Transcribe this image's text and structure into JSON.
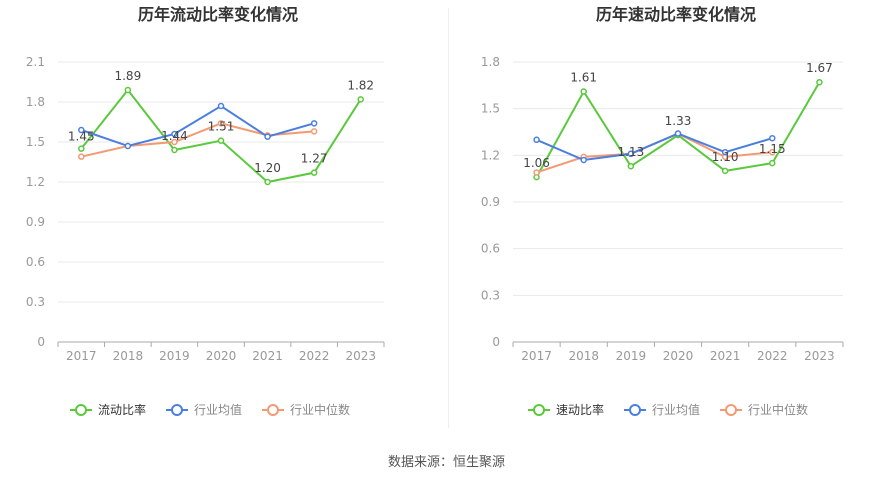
{
  "source": "数据来源：恒生聚源",
  "colors": {
    "series_company": "#5ac93c",
    "series_avg": "#4a7fe0",
    "series_median": "#f29a73",
    "grid": "#e8e8e8",
    "axis": "#999999",
    "title": "#333333"
  },
  "chart_data": [
    {
      "type": "line",
      "title": "历年流动比率变化情况",
      "x": [
        "2017",
        "2018",
        "2019",
        "2020",
        "2021",
        "2022",
        "2023"
      ],
      "ylim": [
        0,
        2.1
      ],
      "yticks": [
        "0",
        "0.3",
        "0.6",
        "0.9",
        "1.2",
        "1.5",
        "1.8",
        "2.1"
      ],
      "grid": true,
      "legend": "bottom-center",
      "series": [
        {
          "name": "流动比率",
          "values": [
            1.45,
            1.89,
            1.44,
            1.51,
            1.2,
            1.27,
            1.82
          ],
          "labels": [
            "1.45",
            "1.89",
            "1.44",
            "1.51",
            "1.20",
            "1.27",
            "1.82"
          ]
        },
        {
          "name": "行业均值",
          "values": [
            1.59,
            1.47,
            1.56,
            1.77,
            1.54,
            1.64,
            null
          ]
        },
        {
          "name": "行业中位数",
          "values": [
            1.39,
            1.47,
            1.5,
            1.64,
            1.55,
            1.58,
            null
          ]
        }
      ]
    },
    {
      "type": "line",
      "title": "历年速动比率变化情况",
      "x": [
        "2017",
        "2018",
        "2019",
        "2020",
        "2021",
        "2022",
        "2023"
      ],
      "ylim": [
        0,
        1.8
      ],
      "yticks": [
        "0",
        "0.3",
        "0.6",
        "0.9",
        "1.2",
        "1.5",
        "1.8"
      ],
      "grid": true,
      "legend": "bottom-center",
      "series": [
        {
          "name": "速动比率",
          "values": [
            1.06,
            1.61,
            1.13,
            1.33,
            1.1,
            1.15,
            1.67
          ],
          "labels": [
            "1.06",
            "1.61",
            "1.13",
            "1.33",
            "1.10",
            "1.15",
            "1.67"
          ]
        },
        {
          "name": "行业均值",
          "values": [
            1.3,
            1.17,
            1.21,
            1.34,
            1.22,
            1.31,
            null
          ]
        },
        {
          "name": "行业中位数",
          "values": [
            1.09,
            1.19,
            1.21,
            1.34,
            1.19,
            1.22,
            null
          ]
        }
      ]
    }
  ]
}
